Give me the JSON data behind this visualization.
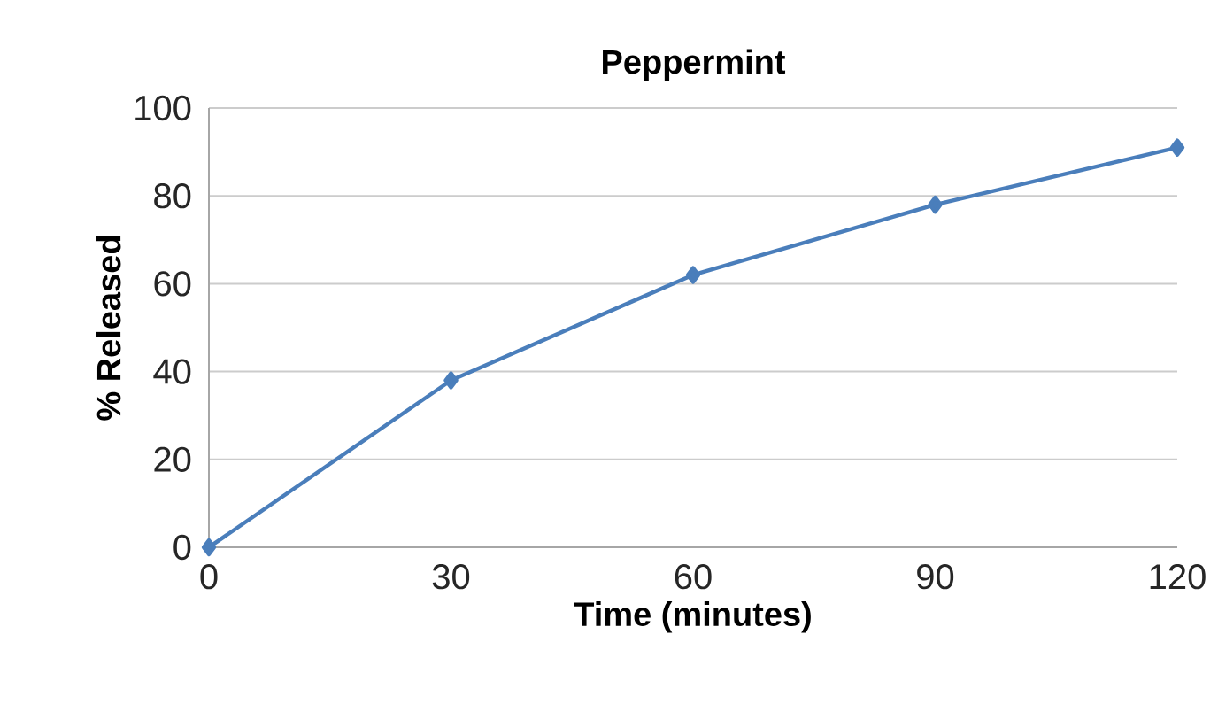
{
  "chart_data": {
    "type": "line",
    "title": "Peppermint",
    "xlabel": "Time (minutes)",
    "ylabel": "% Released",
    "x": [
      0,
      30,
      60,
      90,
      120
    ],
    "series": [
      {
        "color": "#4a7ebb",
        "values": [
          0,
          38,
          62,
          78,
          91
        ]
      }
    ],
    "xlim": [
      0,
      120
    ],
    "xticks": [
      0,
      30,
      60,
      90,
      120
    ],
    "ylim": [
      0,
      100
    ],
    "yticks": [
      0,
      20,
      40,
      60,
      80,
      100
    ],
    "grid": "y",
    "marker": "diamond",
    "line_style": "solid"
  }
}
